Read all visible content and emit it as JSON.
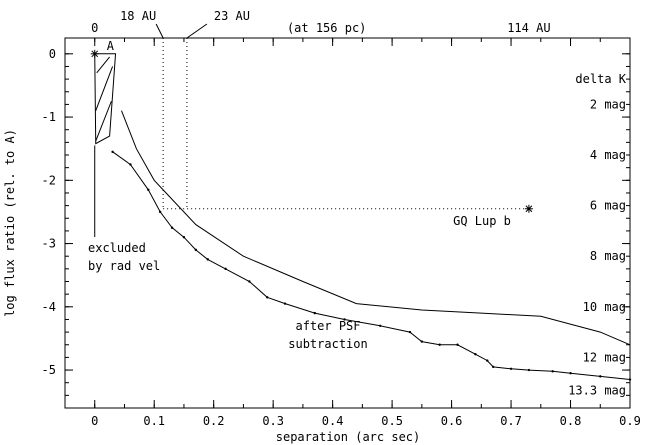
{
  "chart_data": {
    "type": "line",
    "xlabel": "separation (arc sec)",
    "ylabel": "log flux ratio (rel. to A)",
    "xlim": [
      -0.05,
      0.9
    ],
    "ylim": [
      -5.6,
      0.25
    ],
    "x_ticks": [
      0,
      0.1,
      0.2,
      0.3,
      0.4,
      0.5,
      0.6,
      0.7,
      0.8,
      0.9
    ],
    "x_tick_labels": [
      "0",
      "0.1",
      "0.2",
      "0.3",
      "0.4",
      "0.5",
      "0.6",
      "0.7",
      "0.8",
      "0.9"
    ],
    "y_ticks": [
      0,
      -1,
      -2,
      -3,
      -4,
      -5
    ],
    "y_tick_labels": [
      "0",
      "-1",
      "-2",
      "-3",
      "-4",
      "-5"
    ],
    "top_axis": {
      "labels": [
        {
          "text": "0",
          "x": 0.0
        },
        {
          "text": "(at 156 pc)",
          "x": 0.39
        },
        {
          "text": "114 AU",
          "x": 0.73
        }
      ],
      "callouts": [
        {
          "text": "18 AU",
          "x": 0.115
        },
        {
          "text": "23 AU",
          "x": 0.155
        }
      ]
    },
    "delta_k": {
      "header": "delta K",
      "labels": [
        "2 mag",
        "4 mag",
        "6 mag",
        "8 mag",
        "10 mag",
        "12 mag",
        "13.3 mag"
      ],
      "y": [
        -0.8,
        -1.6,
        -2.4,
        -3.2,
        -4.0,
        -4.8,
        -5.32
      ]
    },
    "series": [
      {
        "x": [
          0.045,
          0.07,
          0.1,
          0.12,
          0.17,
          0.25,
          0.35,
          0.44,
          0.55,
          0.65,
          0.75,
          0.85,
          0.9
        ],
        "y": [
          -0.9,
          -1.5,
          -2.0,
          -2.2,
          -2.7,
          -3.2,
          -3.6,
          -3.95,
          -4.05,
          -4.1,
          -4.15,
          -4.4,
          -4.6
        ]
      },
      {
        "x": [
          0.03,
          0.06,
          0.09,
          0.11,
          0.13,
          0.15,
          0.17,
          0.19,
          0.22,
          0.26,
          0.29,
          0.32,
          0.37,
          0.42,
          0.48,
          0.53,
          0.55,
          0.58,
          0.61,
          0.64,
          0.66,
          0.67,
          0.7,
          0.73,
          0.77,
          0.8,
          0.85,
          0.9
        ],
        "y": [
          -1.55,
          -1.75,
          -2.15,
          -2.5,
          -2.75,
          -2.9,
          -3.1,
          -3.25,
          -3.4,
          -3.6,
          -3.85,
          -3.95,
          -4.1,
          -4.2,
          -4.3,
          -4.4,
          -4.55,
          -4.6,
          -4.6,
          -4.75,
          -4.85,
          -4.95,
          -4.98,
          -5.0,
          -5.02,
          -5.05,
          -5.1,
          -5.15
        ]
      }
    ],
    "marker": {
      "label": "GQ Lup b",
      "x": 0.73,
      "y": -2.45
    },
    "primary": {
      "label": "A",
      "x": 0.0,
      "y": 0.0
    },
    "excluded_region": {
      "x_start": 0.0,
      "x_end": 0.03,
      "label_lines": [
        "excluded",
        "by rad vel"
      ]
    },
    "annotation_lines": [
      "after PSF",
      "subtraction"
    ],
    "grid": false,
    "legend": "none"
  }
}
